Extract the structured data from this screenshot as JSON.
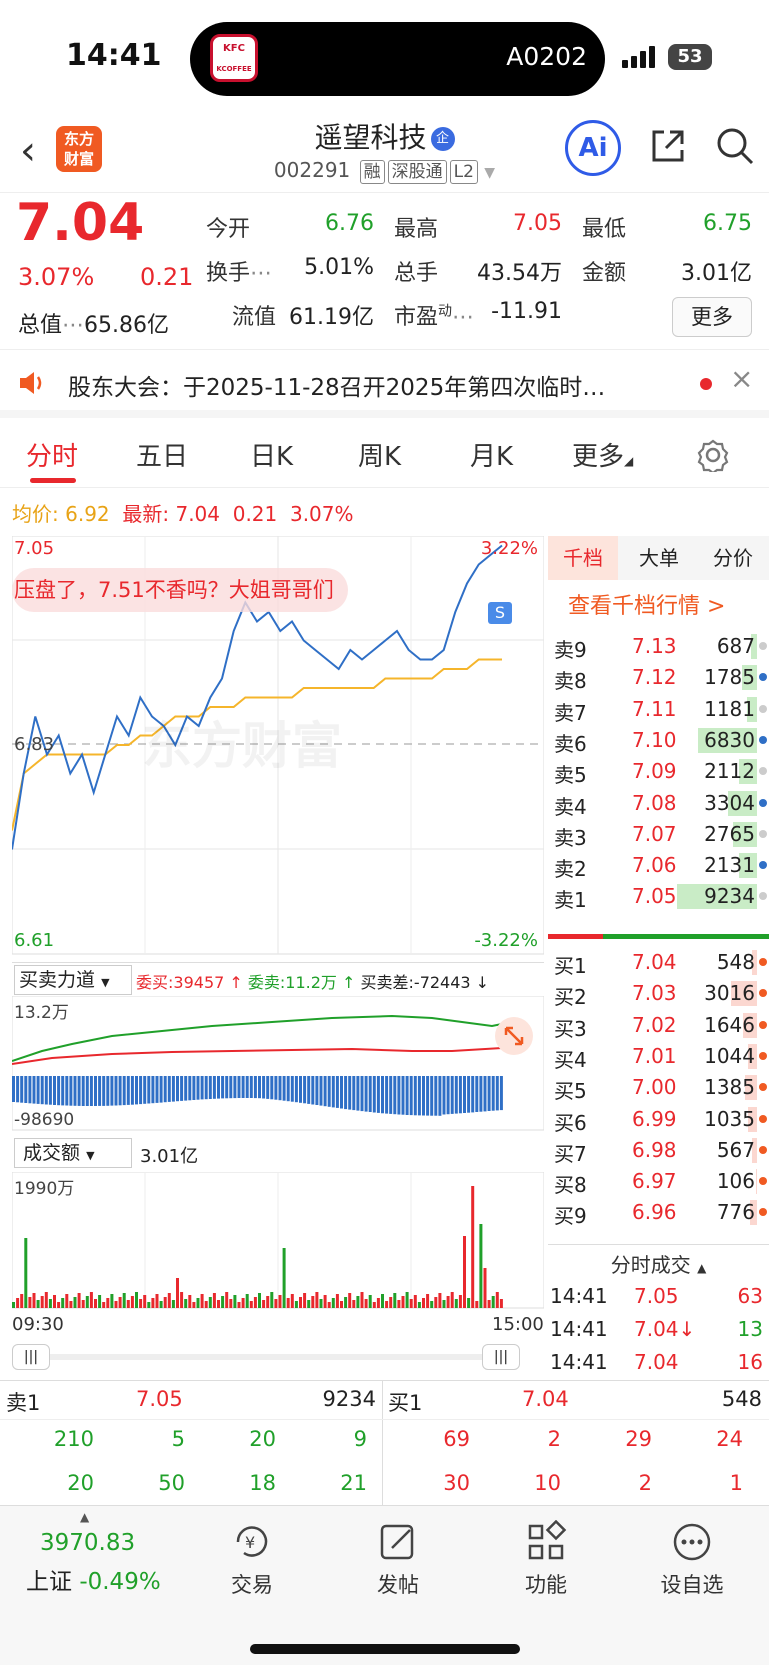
{
  "status": {
    "time": "14:41",
    "carrier": "A0202",
    "battery": "53",
    "kfc_top": "KFC",
    "kfc_bottom": "KCOFFEE"
  },
  "header": {
    "logo_top": "东方",
    "logo_bottom": "财富",
    "name": "遥望科技",
    "qi": "企",
    "code": "002291",
    "tags": [
      "融",
      "深股通",
      "L2"
    ],
    "ai": "Ai"
  },
  "quote": {
    "price": "7.04",
    "pct": "3.07%",
    "chg": "0.21",
    "zongzhi_label": "总值",
    "zongzhi": "65.86亿",
    "open_label": "今开",
    "open": "6.76",
    "high_label": "最高",
    "high": "7.05",
    "low_label": "最低",
    "low": "6.75",
    "turnover_label": "换手",
    "turnover": "5.01%",
    "vol_label": "总手",
    "vol": "43.54万",
    "amt_label": "金额",
    "amt": "3.01亿",
    "float_label": "流值",
    "float": "61.19亿",
    "pe_label": "市盈",
    "pe_sup": "动",
    "pe": "-11.91",
    "more": "更多"
  },
  "notice": {
    "text": "股东大会：于2025-11-28召开2025年第四次临时…"
  },
  "tabs": [
    "分时",
    "五日",
    "日K",
    "周K",
    "月K",
    "更多"
  ],
  "avgline": {
    "avg_label": "均价:",
    "avg": "6.92",
    "last_label": "最新:",
    "last": "7.04",
    "chg": "0.21",
    "pct": "3.07%"
  },
  "chart": {
    "top_price": "7.05",
    "top_pct": "3.22%",
    "mid_price": "6.83",
    "bot_price": "6.61",
    "bot_pct": "-3.22%",
    "watermark": "东方财富",
    "comment": "压盘了，7.51不香吗？大姐哥哥们",
    "s_badge": "S"
  },
  "chart_data": {
    "type": "line",
    "ylim": [
      6.61,
      7.05
    ],
    "price": [
      6.72,
      6.8,
      6.86,
      6.82,
      6.84,
      6.8,
      6.82,
      6.78,
      6.82,
      6.86,
      6.84,
      6.88,
      6.86,
      6.85,
      6.83,
      6.86,
      6.85,
      6.88,
      6.9,
      6.95,
      6.98,
      6.96,
      6.97,
      6.95,
      6.96,
      6.94,
      6.93,
      6.92,
      6.91,
      6.93,
      6.92,
      6.93,
      6.94,
      6.95,
      6.93,
      6.92,
      6.92,
      6.93,
      6.97,
      7.0,
      7.02,
      7.03,
      7.04
    ],
    "avg": [
      6.74,
      6.8,
      6.81,
      6.82,
      6.82,
      6.82,
      6.82,
      6.82,
      6.82,
      6.83,
      6.83,
      6.84,
      6.84,
      6.85,
      6.86,
      6.86,
      6.86,
      6.87,
      6.87,
      6.87,
      6.88,
      6.88,
      6.88,
      6.88,
      6.88,
      6.89,
      6.89,
      6.89,
      6.89,
      6.89,
      6.89,
      6.89,
      6.9,
      6.9,
      6.9,
      6.9,
      6.9,
      6.91,
      6.91,
      6.91,
      6.92,
      6.92,
      6.92
    ]
  },
  "power": {
    "label": "买卖力道",
    "wb_label": "委买:",
    "wb": "39457",
    "ws_label": "委卖:",
    "ws": "11.2万",
    "diff_label": "买卖差:",
    "diff": "-72443",
    "top": "13.2万",
    "bot": "-98690"
  },
  "volume": {
    "label": "成交额",
    "value": "3.01亿",
    "top": "1990万",
    "start": "09:30",
    "end": "15:00"
  },
  "order_tabs": [
    "千档",
    "大单",
    "分价"
  ],
  "order_link": "查看千档行情 >",
  "asks": [
    [
      "卖9",
      "7.13",
      "687"
    ],
    [
      "卖8",
      "7.12",
      "1785"
    ],
    [
      "卖7",
      "7.11",
      "1181"
    ],
    [
      "卖6",
      "7.10",
      "6830"
    ],
    [
      "卖5",
      "7.09",
      "2112"
    ],
    [
      "卖4",
      "7.08",
      "3304"
    ],
    [
      "卖3",
      "7.07",
      "2765"
    ],
    [
      "卖2",
      "7.06",
      "2131"
    ],
    [
      "卖1",
      "7.05",
      "9234"
    ]
  ],
  "bids": [
    [
      "买1",
      "7.04",
      "548"
    ],
    [
      "买2",
      "7.03",
      "3016"
    ],
    [
      "买3",
      "7.02",
      "1646"
    ],
    [
      "买4",
      "7.01",
      "1044"
    ],
    [
      "买5",
      "7.00",
      "1385"
    ],
    [
      "买6",
      "6.99",
      "1035"
    ],
    [
      "买7",
      "6.98",
      "567"
    ],
    [
      "买8",
      "6.97",
      "106"
    ],
    [
      "买9",
      "6.96",
      "776"
    ]
  ],
  "ticks": {
    "label": "分时成交",
    "rows": [
      [
        "14:41",
        "7.05",
        "63"
      ],
      [
        "14:41",
        "7.04↓",
        "13"
      ],
      [
        "14:41",
        "7.04",
        "16"
      ]
    ]
  },
  "queue": {
    "sell_label": "卖1",
    "sell_price": "7.05",
    "sell_vol": "9234",
    "buy_label": "买1",
    "buy_price": "7.04",
    "buy_vol": "548",
    "sell_q": [
      [
        "210",
        "5",
        "20",
        "9"
      ],
      [
        "20",
        "50",
        "18",
        "21"
      ]
    ],
    "buy_q": [
      [
        "69",
        "2",
        "29",
        "24"
      ],
      [
        "30",
        "10",
        "2",
        "1"
      ]
    ]
  },
  "nav": {
    "index": "3970.83",
    "index_name": "上证",
    "index_pct": "-0.49%",
    "items": [
      "交易",
      "发帖",
      "功能",
      "设自选"
    ]
  }
}
